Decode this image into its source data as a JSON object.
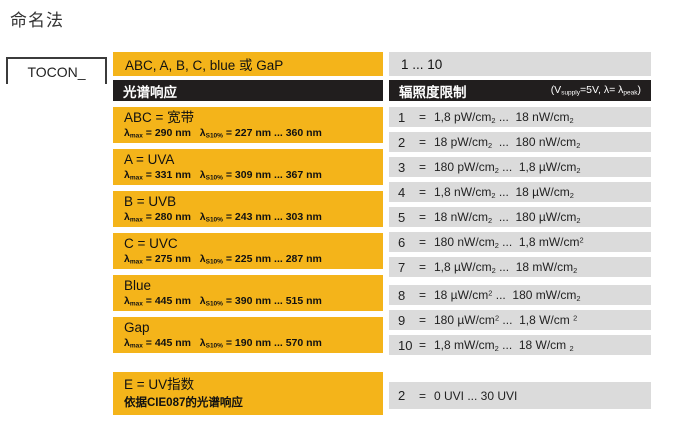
{
  "title": "命名法",
  "tocon_label": "TOCON_",
  "equals_sign": "=",
  "top_row": {
    "left": "ABC, A, B, C, blue 或 GaP",
    "right": "1 ... 10"
  },
  "headers": {
    "left": "光谱响应",
    "right": "辐照度限制",
    "right_note": "(V_{supply}=5V, λ= λ_{peak})"
  },
  "spectral": [
    {
      "title": "ABC = 宽带",
      "lambda": "λ_{max} = 290 nm   λ_{S10%} = 227 nm ... 360 nm"
    },
    {
      "title": "A = UVA",
      "lambda": "λ_{max} = 331 nm   λ_{S10%} = 309 nm ... 367 nm"
    },
    {
      "title": "B = UVB",
      "lambda": "λ_{max} = 280 nm   λ_{S10%} = 243 nm ... 303 nm"
    },
    {
      "title": "C = UVC",
      "lambda": "λ_{max} = 275 nm   λ_{S10%} = 225 nm ... 287 nm"
    },
    {
      "title": "Blue",
      "lambda": "λ_{max} = 445 nm   λ_{S10%} = 390 nm ... 515 nm"
    },
    {
      "title": "Gap",
      "lambda": "λ_{max} = 445 nm   λ_{S10%} = 190 nm ... 570 nm"
    }
  ],
  "uv_index_block": {
    "title": "E = UV指数",
    "subtitle": "依据CIE087的光谱响应"
  },
  "irradiance_rows": [
    {
      "num": "1",
      "range": "1,8 pW/cm_{2} ...  18 nW/cm_{2}"
    },
    {
      "num": "2",
      "range": "18 pW/cm_{2}  ...  180 nW/cm_{2}"
    },
    {
      "num": "3",
      "range": "180 pW/cm_{2} ...  1,8 µW/cm_{2}"
    },
    {
      "num": "4",
      "range": "1,8 nW/cm_{2} ...  18 µW/cm_{2}"
    },
    {
      "num": "5",
      "range": "18 nW/cm_{2}  ...  180 µW/cm_{2}"
    },
    {
      "num": "6",
      "range": "180 nW/cm_{2} ...  1,8 mW/cm^{2}"
    },
    {
      "num": "7",
      "range": "1,8 µW/cm_{2} ...  18 mW/cm_{2}"
    },
    {
      "num": "8",
      "range": "18 µW/cm^{2} ...  180 mW/cm_{2}"
    },
    {
      "num": "9",
      "range": "180 µW/cm^{2} ...  1,8 W/cm ^{2}"
    },
    {
      "num": "10",
      "range": "1,8 mW/cm_{2} ...  18 W/cm _{2}"
    }
  ],
  "uvi_row": {
    "num": "2",
    "range": "0 UVI ... 30 UVI"
  },
  "colors": {
    "accent_yellow": "#F4B41A",
    "row_gray": "#DBDBDB",
    "header_dark": "#211E1E",
    "page_background": "#FFFFFF"
  }
}
